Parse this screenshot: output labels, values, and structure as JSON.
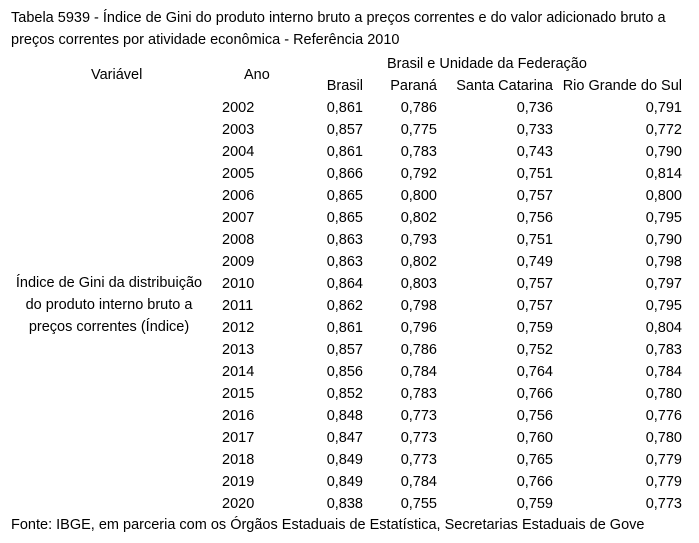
{
  "table": {
    "title": "Tabela 5939 - Índice de Gini do produto interno bruto a preços correntes e do valor adicionado bruto a preços correntes por atividade econômica - Referência 2010",
    "headers": {
      "variavel": "Variável",
      "ano": "Ano",
      "group": "Brasil e Unidade da Federação",
      "columns": [
        "Brasil",
        "Paraná",
        "Santa Catarina",
        "Rio Grande do Sul"
      ]
    },
    "variable_label": "Índice de Gini da distribuição do produto interno bruto a preços correntes (Índice)",
    "rows": [
      {
        "year": "2002",
        "brasil": "0,861",
        "parana": "0,786",
        "santa_catarina": "0,736",
        "rio_grande_do_sul": "0,791"
      },
      {
        "year": "2003",
        "brasil": "0,857",
        "parana": "0,775",
        "santa_catarina": "0,733",
        "rio_grande_do_sul": "0,772"
      },
      {
        "year": "2004",
        "brasil": "0,861",
        "parana": "0,783",
        "santa_catarina": "0,743",
        "rio_grande_do_sul": "0,790"
      },
      {
        "year": "2005",
        "brasil": "0,866",
        "parana": "0,792",
        "santa_catarina": "0,751",
        "rio_grande_do_sul": "0,814"
      },
      {
        "year": "2006",
        "brasil": "0,865",
        "parana": "0,800",
        "santa_catarina": "0,757",
        "rio_grande_do_sul": "0,800"
      },
      {
        "year": "2007",
        "brasil": "0,865",
        "parana": "0,802",
        "santa_catarina": "0,756",
        "rio_grande_do_sul": "0,795"
      },
      {
        "year": "2008",
        "brasil": "0,863",
        "parana": "0,793",
        "santa_catarina": "0,751",
        "rio_grande_do_sul": "0,790"
      },
      {
        "year": "2009",
        "brasil": "0,863",
        "parana": "0,802",
        "santa_catarina": "0,749",
        "rio_grande_do_sul": "0,798"
      },
      {
        "year": "2010",
        "brasil": "0,864",
        "parana": "0,803",
        "santa_catarina": "0,757",
        "rio_grande_do_sul": "0,797"
      },
      {
        "year": "2011",
        "brasil": "0,862",
        "parana": "0,798",
        "santa_catarina": "0,757",
        "rio_grande_do_sul": "0,795"
      },
      {
        "year": "2012",
        "brasil": "0,861",
        "parana": "0,796",
        "santa_catarina": "0,759",
        "rio_grande_do_sul": "0,804"
      },
      {
        "year": "2013",
        "brasil": "0,857",
        "parana": "0,786",
        "santa_catarina": "0,752",
        "rio_grande_do_sul": "0,783"
      },
      {
        "year": "2014",
        "brasil": "0,856",
        "parana": "0,784",
        "santa_catarina": "0,764",
        "rio_grande_do_sul": "0,784"
      },
      {
        "year": "2015",
        "brasil": "0,852",
        "parana": "0,783",
        "santa_catarina": "0,766",
        "rio_grande_do_sul": "0,780"
      },
      {
        "year": "2016",
        "brasil": "0,848",
        "parana": "0,773",
        "santa_catarina": "0,756",
        "rio_grande_do_sul": "0,776"
      },
      {
        "year": "2017",
        "brasil": "0,847",
        "parana": "0,773",
        "santa_catarina": "0,760",
        "rio_grande_do_sul": "0,780"
      },
      {
        "year": "2018",
        "brasil": "0,849",
        "parana": "0,773",
        "santa_catarina": "0,765",
        "rio_grande_do_sul": "0,779"
      },
      {
        "year": "2019",
        "brasil": "0,849",
        "parana": "0,784",
        "santa_catarina": "0,766",
        "rio_grande_do_sul": "0,779"
      },
      {
        "year": "2020",
        "brasil": "0,838",
        "parana": "0,755",
        "santa_catarina": "0,759",
        "rio_grande_do_sul": "0,773"
      }
    ],
    "footer": "Fonte: IBGE, em parceria com os Órgãos Estaduais de Estatística, Secretarias Estaduais de Gove"
  }
}
